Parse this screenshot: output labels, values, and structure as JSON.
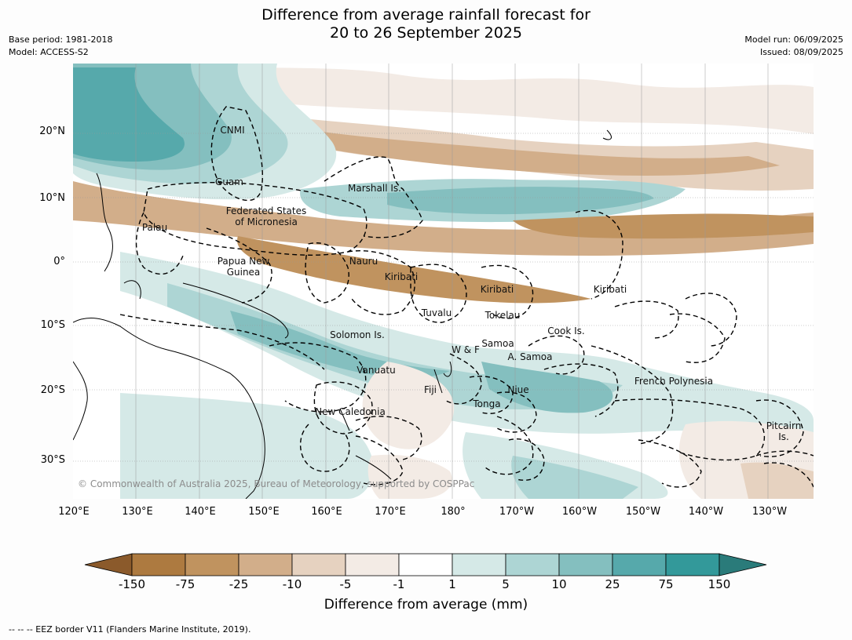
{
  "title": {
    "line1": "Difference from average rainfall forecast for",
    "line2": "20 to 26 September 2025"
  },
  "meta_left": [
    "Base period: 1981-2018",
    "Model: ACCESS-S2"
  ],
  "meta_right": [
    "Model run: 06/09/2025",
    "Issued: 08/09/2025"
  ],
  "lat_labels": [
    "20°N",
    "10°N",
    "0°",
    "10°S",
    "20°S",
    "30°S"
  ],
  "lon_labels": [
    "120°E",
    "130°E",
    "140°E",
    "150°E",
    "160°E",
    "170°E",
    "180°",
    "170°W",
    "160°W",
    "150°W",
    "140°W",
    "130°W"
  ],
  "places": [
    "CNMI",
    "Guam",
    "Marshall Is.",
    "Federated States",
    "of Micronesia",
    "Palau",
    "Papua New",
    "Guinea",
    "Nauru",
    "Kiribati",
    "Kiribati",
    "Kiribati",
    "Tuvalu",
    "Tokelau",
    "Cook Is.",
    "Solomon Is.",
    "W & F",
    "Samoa",
    "A. Samoa",
    "Vanuatu",
    "Fiji",
    "Niue",
    "Tonga",
    "French Polynesia",
    "New Caledonia",
    "Pitcairn",
    "Is."
  ],
  "copyright": "© Commonwealth of Australia 2025, Bureau of Meteorology, supported by COSPPac",
  "colorbar": {
    "ticks": [
      "-150",
      "-75",
      "-25",
      "-10",
      "-5",
      "-1",
      "1",
      "5",
      "10",
      "25",
      "75",
      "150"
    ],
    "colors": [
      "#8b5a2b",
      "#ad7a40",
      "#c0935f",
      "#d2ae8a",
      "#e6d2c0",
      "#f3ebe5",
      "#ffffff",
      "#d5e9e7",
      "#add5d4",
      "#84bfbf",
      "#56a9ab",
      "#33999a",
      "#2a7b7a"
    ],
    "label": "Difference from average (mm)"
  },
  "footer": "--  --  -- EEZ border V11 (Flanders Marine Institute, 2019)."
}
